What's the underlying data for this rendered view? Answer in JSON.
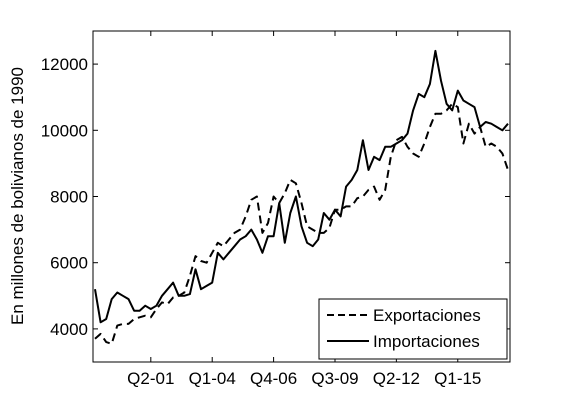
{
  "chart_data": {
    "type": "line",
    "title": "",
    "xlabel": "",
    "ylabel": "En millones de bolivianos de 1990",
    "ylim": [
      3000,
      13000
    ],
    "yticks": [
      4000,
      6000,
      8000,
      10000,
      12000
    ],
    "xticks": [
      "Q2-01",
      "Q1-04",
      "Q4-06",
      "Q3-09",
      "Q2-12",
      "Q1-15"
    ],
    "x_tick_positions": [
      10,
      21,
      32,
      43,
      54,
      65
    ],
    "grid": false,
    "legend_position": "bottom-right",
    "x_count": 75,
    "series": [
      {
        "name": "Exportaciones",
        "style": "dashed",
        "color": "#000000",
        "values": [
          3700,
          3850,
          3600,
          3550,
          4100,
          4150,
          4150,
          4300,
          4350,
          4400,
          4350,
          4600,
          4800,
          4750,
          4950,
          5000,
          5100,
          5600,
          6200,
          6050,
          6000,
          6300,
          6600,
          6500,
          6700,
          6900,
          7000,
          7400,
          7900,
          8000,
          6900,
          7200,
          8000,
          7800,
          8100,
          8500,
          8400,
          7800,
          7100,
          7000,
          6900,
          6900,
          7050,
          7600,
          7600,
          7700,
          7700,
          7950,
          8000,
          8200,
          8300,
          7900,
          8200,
          9200,
          9700,
          9800,
          9500,
          9300,
          9200,
          9600,
          10100,
          10500,
          10500,
          10600,
          10800,
          10700,
          9600,
          10200,
          9900,
          10100,
          9500,
          9600,
          9500,
          9300,
          8800
        ]
      },
      {
        "name": "Importaciones",
        "style": "solid",
        "color": "#000000",
        "values": [
          5200,
          4200,
          4300,
          4900,
          5100,
          5000,
          4900,
          4550,
          4550,
          4700,
          4600,
          4700,
          5000,
          5200,
          5400,
          5000,
          5000,
          5050,
          5800,
          5200,
          5300,
          5400,
          6300,
          6100,
          6300,
          6500,
          6700,
          6800,
          7000,
          6700,
          6300,
          6800,
          6800,
          7800,
          6600,
          7500,
          8000,
          7100,
          6600,
          6500,
          6700,
          7500,
          7300,
          7600,
          7400,
          8300,
          8500,
          8800,
          9700,
          8800,
          9200,
          9100,
          9500,
          9500,
          9600,
          9700,
          9900,
          10600,
          11100,
          11000,
          11400,
          12400,
          11500,
          10800,
          10600,
          11200,
          10900,
          10800,
          10700,
          10100,
          10250,
          10200,
          10100,
          10000,
          10200
        ]
      }
    ]
  }
}
